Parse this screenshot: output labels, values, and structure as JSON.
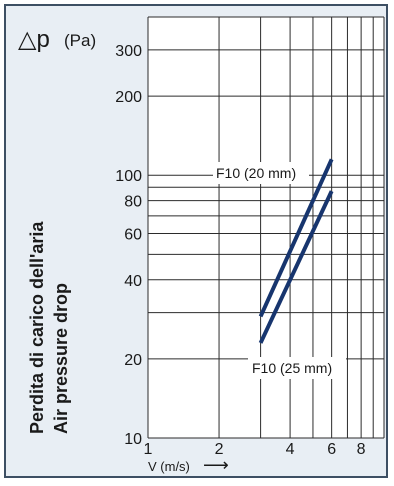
{
  "chart_data": {
    "type": "line",
    "title": "",
    "ylabel_symbol": "△p",
    "ylabel_unit": "(Pa)",
    "ylabel_lines": [
      "Perdita di carico  dell'aria",
      "Air pressure drop"
    ],
    "xlabel": "V (m/s)",
    "xlabel_arrow": "⟶",
    "x_scale": "log",
    "y_scale": "log",
    "xlim": [
      1,
      10
    ],
    "ylim": [
      10,
      400
    ],
    "x_ticks": [
      1,
      2,
      4,
      6,
      8
    ],
    "x_tick_labels": [
      "1",
      "2",
      "4",
      "6",
      "8"
    ],
    "x_grid": [
      1,
      2,
      3,
      4,
      5,
      6,
      7,
      8,
      9,
      10
    ],
    "y_ticks": [
      10,
      20,
      40,
      60,
      80,
      100,
      200,
      300
    ],
    "y_tick_labels": [
      "10",
      "20",
      "40",
      "60",
      "80",
      "100",
      "200",
      "300"
    ],
    "y_grid": [
      10,
      20,
      30,
      40,
      50,
      60,
      70,
      80,
      90,
      100,
      200,
      300,
      400
    ],
    "grid": true,
    "series": [
      {
        "name": "F10 (20 mm)",
        "x": [
          3,
          6
        ],
        "y": [
          29,
          115
        ],
        "color": "#17356e"
      },
      {
        "name": "F10 (25 mm)",
        "x": [
          3,
          6
        ],
        "y": [
          23,
          87
        ],
        "color": "#17356e"
      }
    ]
  },
  "colors": {
    "frame_border": "#3d4f63",
    "background": "#e8eef4",
    "plot_area": "#ffffff",
    "grid": "#2b2b2b",
    "series_line": "#17356e"
  }
}
